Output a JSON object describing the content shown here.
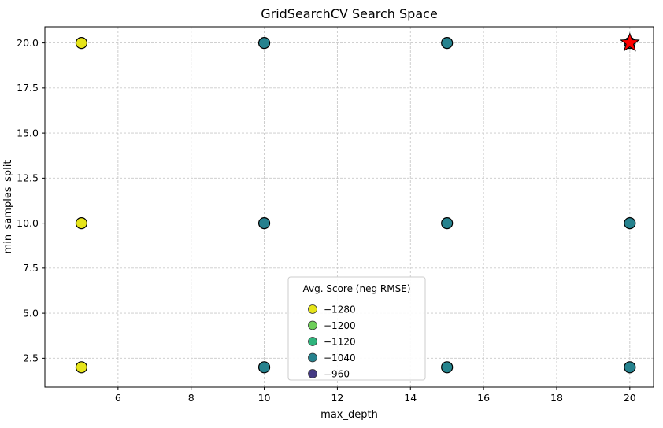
{
  "chart_data": {
    "type": "scatter",
    "title": "GridSearchCV Search Space",
    "xlabel": "max_depth",
    "ylabel": "min_samples_split",
    "xlim": [
      4.0,
      20.65
    ],
    "ylim": [
      0.9,
      20.9
    ],
    "grid": true,
    "xticks": {
      "values": [
        6,
        8,
        10,
        12,
        14,
        16,
        18,
        20
      ],
      "labels": [
        "6",
        "8",
        "10",
        "12",
        "14",
        "16",
        "18",
        "20"
      ]
    },
    "yticks": {
      "values": [
        2.5,
        5.0,
        7.5,
        10.0,
        12.5,
        15.0,
        17.5,
        20.0
      ],
      "labels": [
        "2.5",
        "5.0",
        "7.5",
        "10.0",
        "12.5",
        "15.0",
        "17.5",
        "20.0"
      ]
    },
    "series": [
      {
        "name": "grid-search-candidates",
        "marker": "circle",
        "edge_color": "#000000",
        "points": [
          {
            "max_depth": 5,
            "min_samples_split": 2,
            "color": "#e6e419"
          },
          {
            "max_depth": 5,
            "min_samples_split": 10,
            "color": "#e6e419"
          },
          {
            "max_depth": 5,
            "min_samples_split": 20,
            "color": "#e6e419"
          },
          {
            "max_depth": 10,
            "min_samples_split": 2,
            "color": "#26828e"
          },
          {
            "max_depth": 10,
            "min_samples_split": 10,
            "color": "#27808e"
          },
          {
            "max_depth": 10,
            "min_samples_split": 20,
            "color": "#26828e"
          },
          {
            "max_depth": 15,
            "min_samples_split": 2,
            "color": "#25848d"
          },
          {
            "max_depth": 15,
            "min_samples_split": 10,
            "color": "#26828e"
          },
          {
            "max_depth": 15,
            "min_samples_split": 20,
            "color": "#26828e"
          },
          {
            "max_depth": 20,
            "min_samples_split": 2,
            "color": "#26828e"
          },
          {
            "max_depth": 20,
            "min_samples_split": 10,
            "color": "#26828e"
          },
          {
            "max_depth": 20,
            "min_samples_split": 20,
            "color": "#26828e"
          }
        ]
      }
    ],
    "best_point": {
      "max_depth": 20,
      "min_samples_split": 20,
      "marker": "star",
      "color": "#ff0000",
      "edge_color": "#000000"
    },
    "legend": {
      "title": "Avg. Score (neg RMSE)",
      "position": "lower center",
      "entries": [
        {
          "label": "−1280",
          "color": "#e6e419"
        },
        {
          "label": "−1200",
          "color": "#6dce59"
        },
        {
          "label": "−1120",
          "color": "#2fb47c"
        },
        {
          "label": "−1040",
          "color": "#26828e"
        },
        {
          "label": "−960",
          "color": "#443983"
        }
      ]
    }
  }
}
